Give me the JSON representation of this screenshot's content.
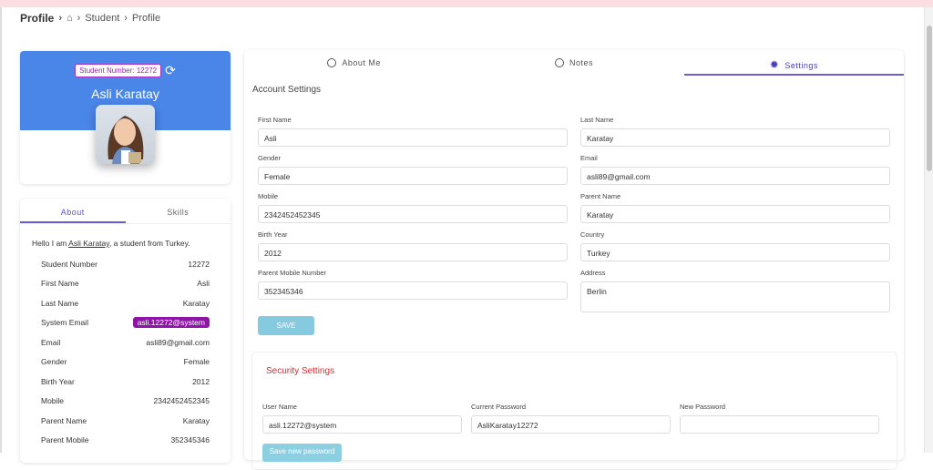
{
  "breadcrumb": {
    "root": "Profile",
    "items": [
      "Student",
      "Profile"
    ]
  },
  "profile": {
    "student_number_badge": "Student Number: 12272",
    "name": "Asli Karatay"
  },
  "about": {
    "tabs": [
      "About",
      "Skills"
    ],
    "intro_prefix": "Hello I am ",
    "intro_name": "Asli Karatay",
    "intro_suffix": ", a student from Turkey.",
    "rows": [
      {
        "label": "Student Number",
        "value": "12272"
      },
      {
        "label": "First Name",
        "value": "Asli"
      },
      {
        "label": "Last Name",
        "value": "Karatay"
      },
      {
        "label": "System Email",
        "value": "asli.12272@system"
      },
      {
        "label": "Email",
        "value": "asli89@gmail.com"
      },
      {
        "label": "Gender",
        "value": "Female"
      },
      {
        "label": "Birth Year",
        "value": "2012"
      },
      {
        "label": "Mobile",
        "value": "2342452452345"
      },
      {
        "label": "Parent Name",
        "value": "Karatay"
      },
      {
        "label": "Parent Mobile",
        "value": "352345346"
      }
    ]
  },
  "tabs": [
    {
      "label": "About Me",
      "icon": "face-icon"
    },
    {
      "label": "Notes",
      "icon": "face-icon"
    },
    {
      "label": "Settings",
      "icon": "gear-icon",
      "active": true
    }
  ],
  "account": {
    "title": "Account Settings",
    "fields": [
      {
        "label": "First Name",
        "value": "Asli"
      },
      {
        "label": "Last Name",
        "value": "Karatay"
      },
      {
        "label": "Gender",
        "value": "Female"
      },
      {
        "label": "Email",
        "value": "asli89@gmail.com"
      },
      {
        "label": "Mobile",
        "value": "2342452452345"
      },
      {
        "label": "Parent Name",
        "value": "Karatay"
      },
      {
        "label": "Birth Year",
        "value": "2012"
      },
      {
        "label": "Country",
        "value": "Turkey"
      },
      {
        "label": "Parent Mobile Number",
        "value": "352345346"
      },
      {
        "label": "Address",
        "value": "Berlin"
      }
    ],
    "save_label": "SAVE"
  },
  "security": {
    "title": "Security Settings",
    "fields": [
      {
        "label": "User Name",
        "value": "asli.12272@system"
      },
      {
        "label": "Current Password",
        "value": "AsliKaratay12272"
      },
      {
        "label": "New Password",
        "value": ""
      }
    ],
    "save_label": "Save new password"
  },
  "colors": {
    "header_blue": "#4a86e8",
    "accent": "#6a5fd0",
    "badge_purple": "#8e15a6",
    "security_red": "#e8262b"
  }
}
